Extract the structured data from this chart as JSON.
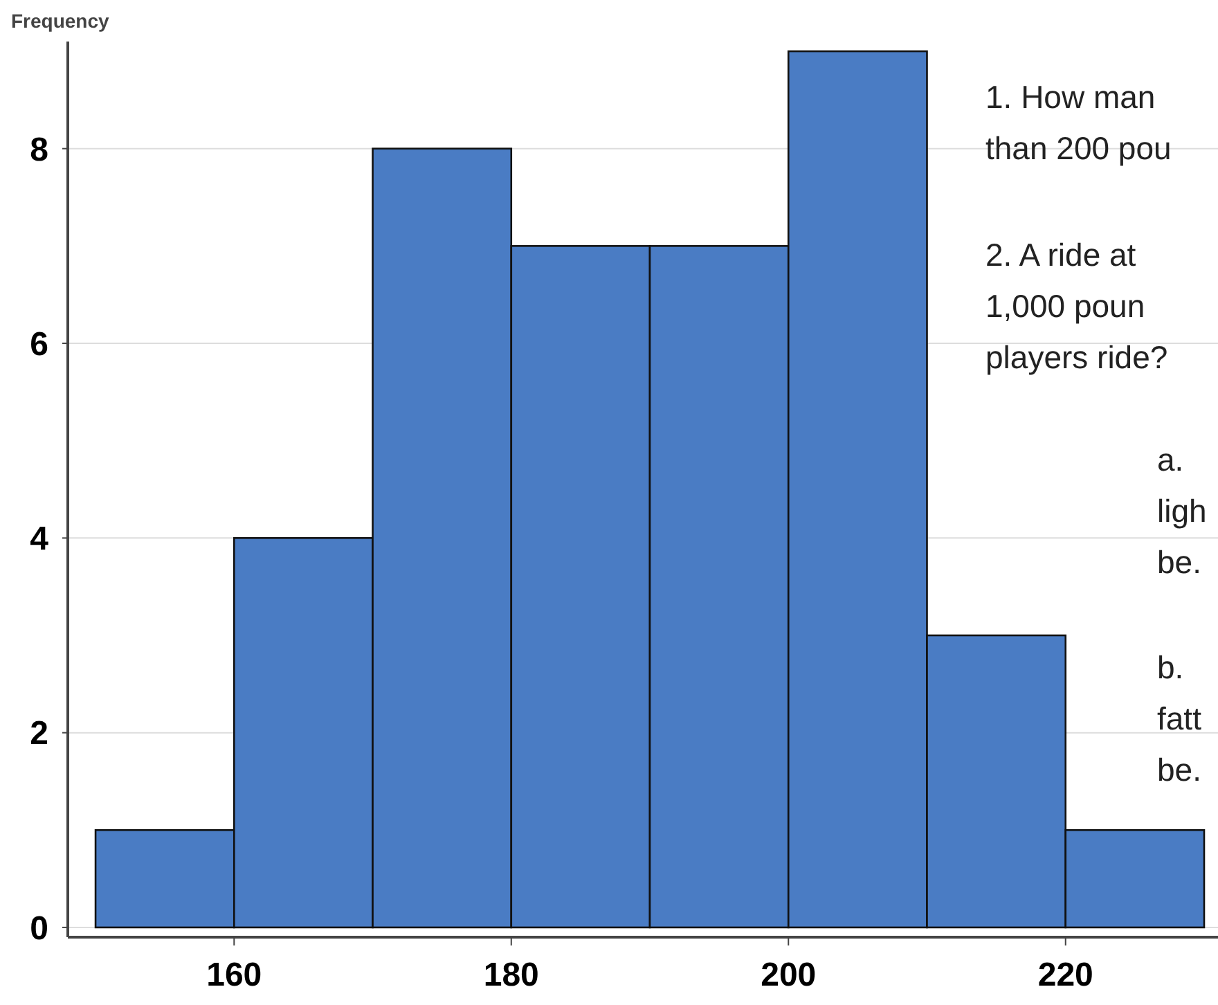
{
  "chart_data": {
    "type": "histogram",
    "ylabel": "Frequency",
    "bins": [
      150,
      160,
      170,
      180,
      190,
      200,
      210,
      220,
      230
    ],
    "values": [
      1,
      4,
      8,
      7,
      7,
      9,
      3,
      1
    ],
    "color": "#4a7cc4",
    "xlim": [
      148,
      231
    ],
    "xticks": [
      160,
      180,
      200,
      220
    ],
    "ylim": [
      -0.1,
      9.1
    ],
    "yticks": [
      0,
      2,
      4,
      6,
      8
    ],
    "grid": "y",
    "annotations": [
      "1.  How man\nthan 200 pou",
      "2.  A ride at\n1,000 poun\nplayers ride?",
      "a.\nligh\nbe.",
      "b.\nfatt\nbe."
    ]
  }
}
